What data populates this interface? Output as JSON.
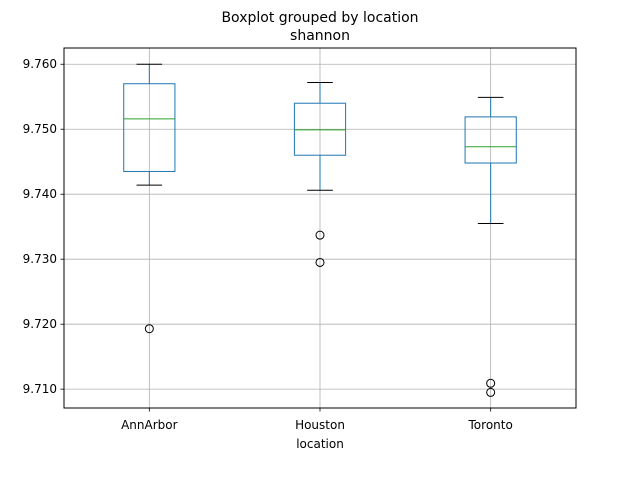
{
  "chart_data": {
    "type": "box",
    "title": "Boxplot grouped by location",
    "subtitle": "shannon",
    "xlabel": "location",
    "ylabel": "",
    "ylim": [
      9.7071,
      9.7625
    ],
    "yticks": [
      9.71,
      9.72,
      9.73,
      9.74,
      9.75,
      9.76
    ],
    "grid": true,
    "colors": {
      "box": "#1f77b4",
      "median": "#2ca02c",
      "whisker": "#000000",
      "grid": "#b0b0b0"
    },
    "categories": [
      "AnnArbor",
      "Houston",
      "Toronto"
    ],
    "boxes": [
      {
        "category": "AnnArbor",
        "whisker_low": 9.7414,
        "q1": 9.7435,
        "median": 9.7516,
        "q3": 9.757,
        "whisker_high": 9.76,
        "outliers": [
          9.7193
        ]
      },
      {
        "category": "Houston",
        "whisker_low": 9.7406,
        "q1": 9.746,
        "median": 9.7499,
        "q3": 9.754,
        "whisker_high": 9.7572,
        "outliers": [
          9.7337,
          9.7295
        ]
      },
      {
        "category": "Toronto",
        "whisker_low": 9.7355,
        "q1": 9.7448,
        "median": 9.7473,
        "q3": 9.7519,
        "whisker_high": 9.7549,
        "outliers": [
          9.7109,
          9.7095
        ]
      }
    ]
  }
}
